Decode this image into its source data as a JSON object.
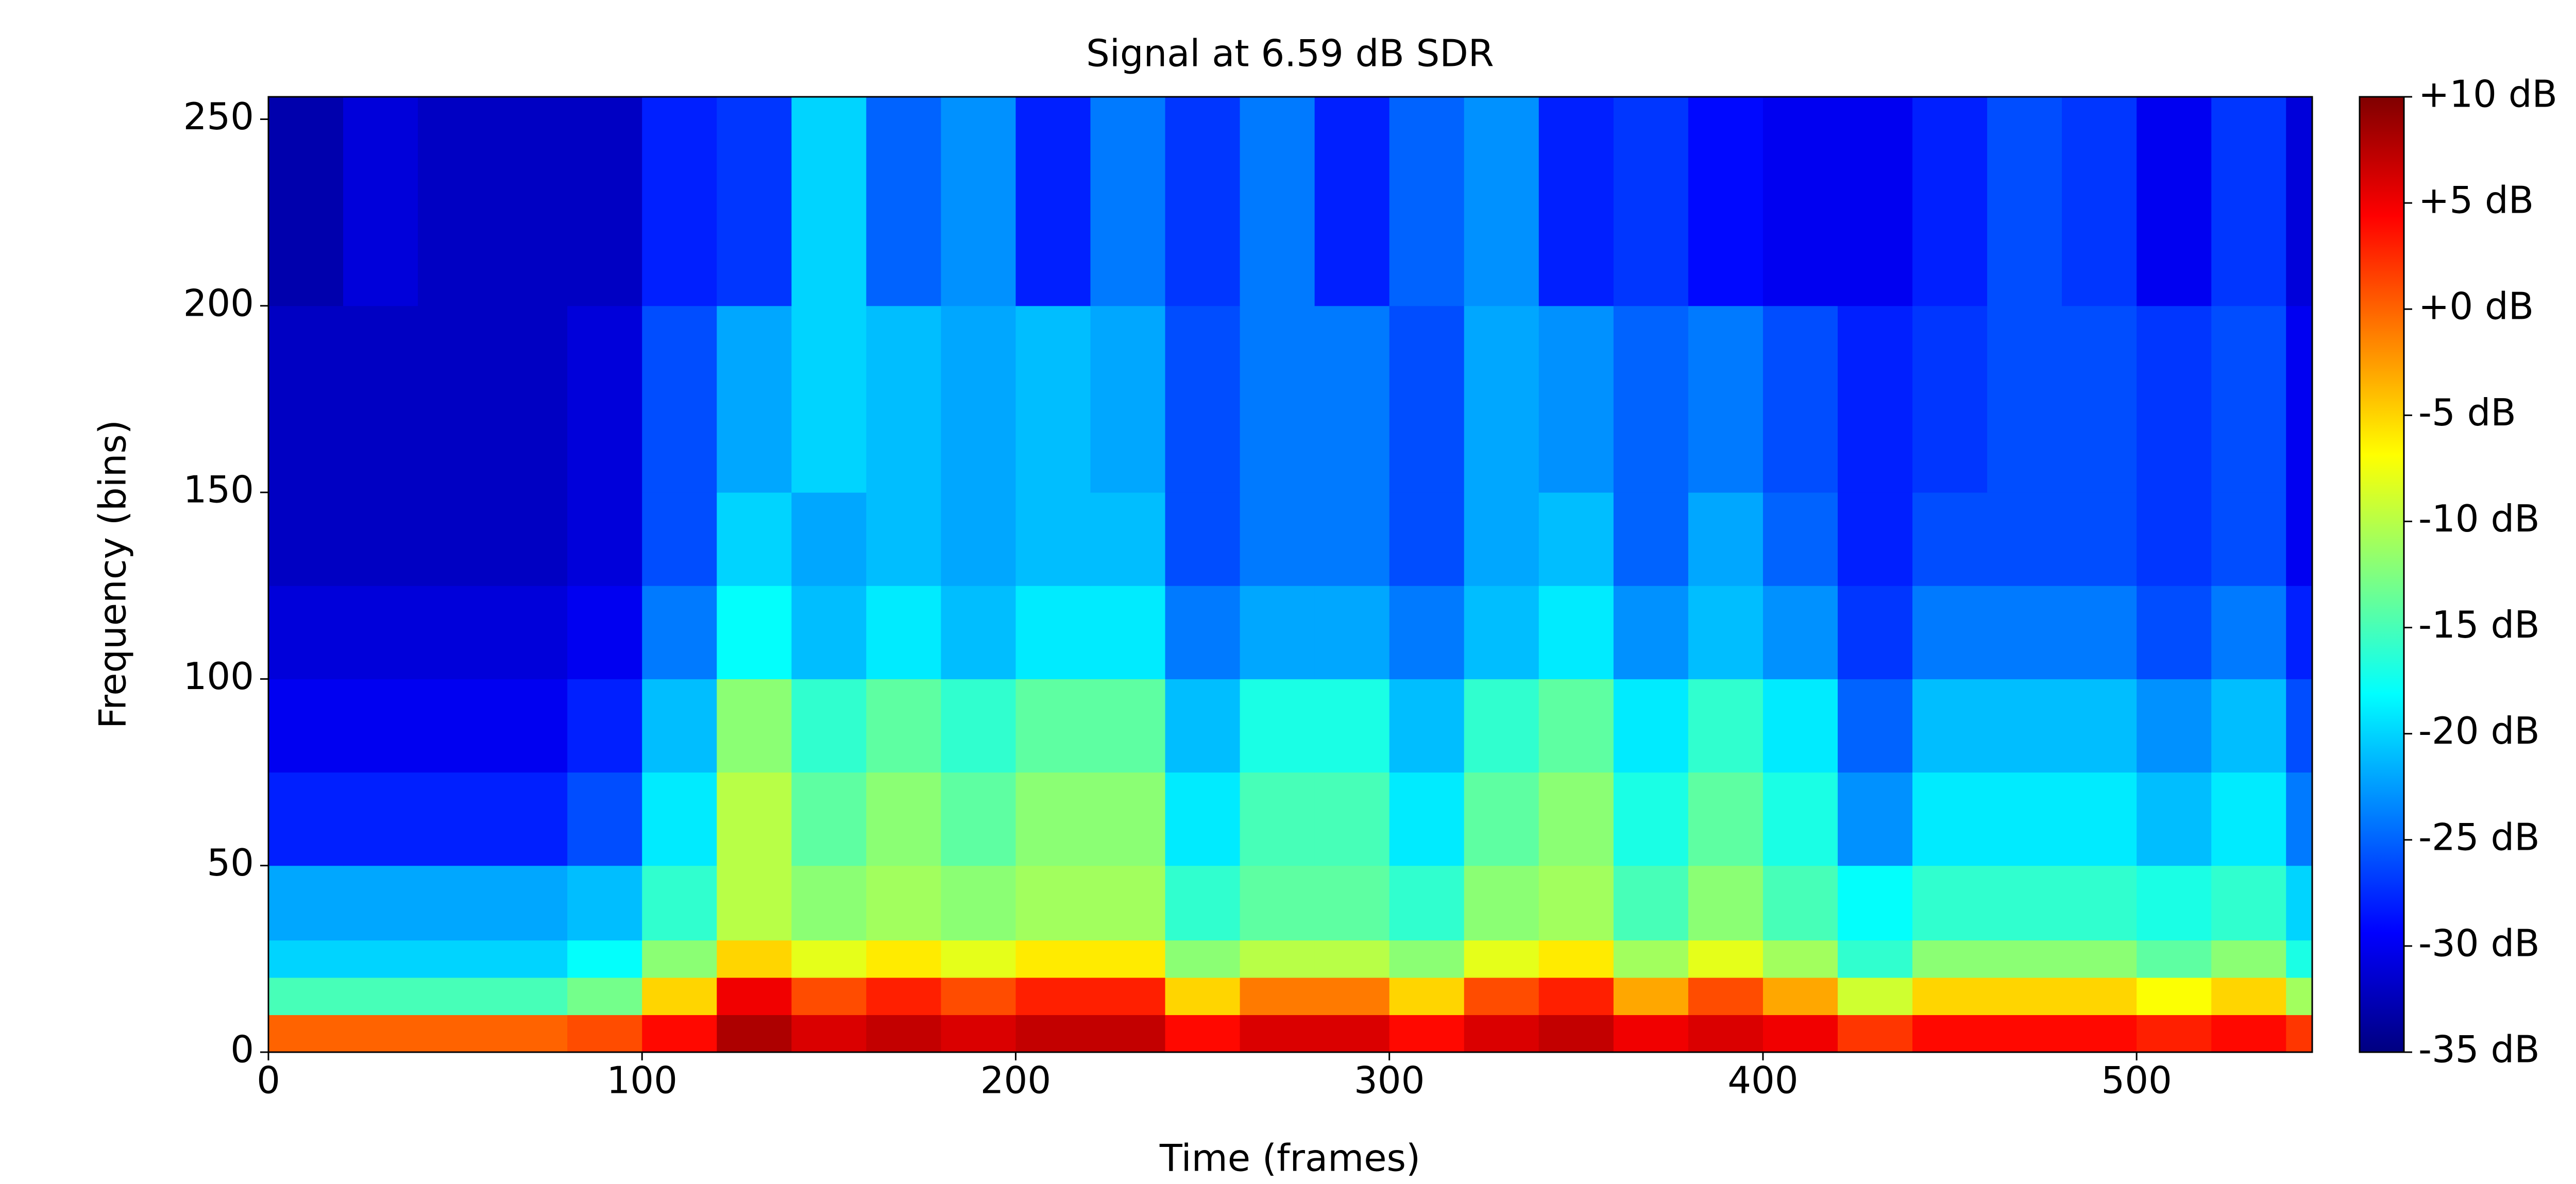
{
  "chart_data": {
    "type": "heatmap",
    "title": "Signal at 6.59 dB SDR",
    "x_label": "Time (frames)",
    "y_label": "Frequency (bins)",
    "colormap": "jet",
    "x_edges": [
      0,
      20,
      40,
      60,
      80,
      100,
      120,
      140,
      160,
      180,
      200,
      220,
      240,
      260,
      280,
      300,
      320,
      340,
      360,
      380,
      400,
      420,
      440,
      460,
      480,
      500,
      520,
      540,
      547
    ],
    "y_edges": [
      0,
      10,
      20,
      30,
      50,
      75,
      100,
      125,
      150,
      200,
      256
    ],
    "z": [
      [
        0,
        0,
        0,
        0,
        1,
        4,
        8,
        6,
        7,
        6,
        7,
        7,
        4,
        6,
        6,
        4,
        6,
        7,
        5,
        6,
        5,
        2,
        4,
        4,
        4,
        3,
        4,
        2
      ],
      [
        -15,
        -15,
        -15,
        -15,
        -13,
        -5,
        5,
        1,
        3,
        1,
        3,
        3,
        -5,
        -1,
        -1,
        -5,
        1,
        3,
        -3,
        1,
        -3,
        -9,
        -5,
        -5,
        -5,
        -7,
        -5,
        -11
      ],
      [
        -20,
        -20,
        -20,
        -20,
        -18,
        -12,
        -5,
        -8,
        -6,
        -8,
        -6,
        -6,
        -12,
        -10,
        -10,
        -12,
        -8,
        -6,
        -11,
        -8,
        -11,
        -16,
        -12,
        -12,
        -12,
        -14,
        -12,
        -17
      ],
      [
        -22,
        -22,
        -22,
        -22,
        -21,
        -16,
        -10,
        -12,
        -11,
        -12,
        -11,
        -11,
        -16,
        -14,
        -14,
        -16,
        -12,
        -11,
        -15,
        -12,
        -15,
        -18,
        -16,
        -16,
        -16,
        -17,
        -16,
        -20
      ],
      [
        -28,
        -28,
        -28,
        -28,
        -26,
        -19,
        -10,
        -14,
        -12,
        -14,
        -12,
        -12,
        -19,
        -15,
        -15,
        -19,
        -14,
        -12,
        -17,
        -14,
        -17,
        -23,
        -19,
        -19,
        -19,
        -21,
        -19,
        -24
      ],
      [
        -30,
        -30,
        -30,
        -30,
        -28,
        -21,
        -12,
        -16,
        -14,
        -16,
        -14,
        -14,
        -21,
        -17,
        -17,
        -21,
        -16,
        -14,
        -19,
        -16,
        -19,
        -25,
        -21,
        -21,
        -21,
        -23,
        -21,
        -26
      ],
      [
        -31,
        -31,
        -31,
        -31,
        -30,
        -24,
        -18,
        -21,
        -19,
        -21,
        -19,
        -19,
        -24,
        -22,
        -22,
        -24,
        -21,
        -19,
        -23,
        -21,
        -23,
        -27,
        -24,
        -24,
        -24,
        -26,
        -24,
        -28
      ],
      [
        -32,
        -32,
        -32,
        -32,
        -31,
        -26,
        -20,
        -22,
        -21,
        -22,
        -21,
        -21,
        -26,
        -24,
        -24,
        -26,
        -22,
        -21,
        -25,
        -22,
        -25,
        -28,
        -26,
        -26,
        -26,
        -27,
        -26,
        -30
      ],
      [
        -32,
        -32,
        -32,
        -32,
        -31,
        -26,
        -22,
        -20,
        -21,
        -22,
        -21,
        -22,
        -26,
        -24,
        -24,
        -26,
        -22,
        -23,
        -25,
        -24,
        -26,
        -28,
        -27,
        -26,
        -26,
        -27,
        -26,
        -30
      ],
      [
        -33,
        -31,
        -32,
        -32,
        -32,
        -28,
        -27,
        -20,
        -25,
        -23,
        -28,
        -24,
        -27,
        -24,
        -28,
        -25,
        -23,
        -28,
        -27,
        -29,
        -30,
        -30,
        -28,
        -26,
        -27,
        -30,
        -27,
        -31
      ]
    ],
    "xlim": [
      0,
      547
    ],
    "ylim": [
      0,
      256
    ],
    "xticks": [
      0,
      100,
      200,
      300,
      400,
      500
    ],
    "yticks": [
      0,
      50,
      100,
      150,
      200,
      250
    ],
    "clim": [
      -35,
      10
    ],
    "cticks": [
      {
        "value": 10,
        "label": "+10 dB"
      },
      {
        "value": 5,
        "label": "+5 dB"
      },
      {
        "value": 0,
        "label": "+0 dB"
      },
      {
        "value": -5,
        "label": "-5 dB"
      },
      {
        "value": -10,
        "label": "-10 dB"
      },
      {
        "value": -15,
        "label": "-15 dB"
      },
      {
        "value": -20,
        "label": "-20 dB"
      },
      {
        "value": -25,
        "label": "-25 dB"
      },
      {
        "value": -30,
        "label": "-30 dB"
      },
      {
        "value": -35,
        "label": "-35 dB"
      }
    ]
  }
}
